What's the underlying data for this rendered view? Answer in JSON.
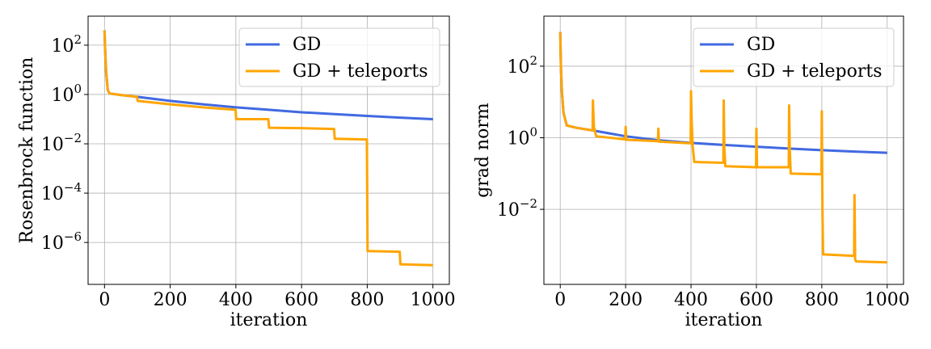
{
  "chart_data": [
    {
      "type": "line",
      "xlabel": "iteration",
      "ylabel": "Rosenbrock function",
      "yscale": "log",
      "xlim": [
        -50,
        1050
      ],
      "ylim": [
        2e-08,
        1500
      ],
      "x_ticks": [
        0,
        200,
        400,
        600,
        800,
        1000
      ],
      "x_tick_labels": [
        "0",
        "200",
        "400",
        "600",
        "800",
        "1000"
      ],
      "y_ticks": [
        100,
        1,
        0.01,
        0.0001,
        1e-06
      ],
      "y_tick_labels": [
        {
          "base": "10",
          "exp": "2"
        },
        {
          "base": "10",
          "exp": "0"
        },
        {
          "base": "10",
          "exp": "−2"
        },
        {
          "base": "10",
          "exp": "−4"
        },
        {
          "base": "10",
          "exp": "−6"
        }
      ],
      "grid": true,
      "legend_position": "top-right",
      "series": [
        {
          "name": "GD",
          "color": "#4169e1",
          "points": [
            [
              0,
              400
            ],
            [
              2,
              60
            ],
            [
              5,
              8
            ],
            [
              10,
              1.5
            ],
            [
              15,
              1.1
            ],
            [
              50,
              0.95
            ],
            [
              100,
              0.8
            ],
            [
              200,
              0.55
            ],
            [
              300,
              0.4
            ],
            [
              400,
              0.3
            ],
            [
              500,
              0.24
            ],
            [
              600,
              0.19
            ],
            [
              700,
              0.16
            ],
            [
              800,
              0.135
            ],
            [
              900,
              0.115
            ],
            [
              1000,
              0.1
            ]
          ]
        },
        {
          "name": "GD + teleports",
          "color": "#ffa500",
          "points": [
            [
              0,
              400
            ],
            [
              2,
              60
            ],
            [
              5,
              8
            ],
            [
              10,
              1.5
            ],
            [
              15,
              1.1
            ],
            [
              50,
              0.95
            ],
            [
              99,
              0.8
            ],
            [
              101,
              0.55
            ],
            [
              200,
              0.4
            ],
            [
              300,
              0.3
            ],
            [
              399,
              0.24
            ],
            [
              401,
              0.1
            ],
            [
              499,
              0.1
            ],
            [
              501,
              0.045
            ],
            [
              600,
              0.043
            ],
            [
              699,
              0.04
            ],
            [
              701,
              0.016
            ],
            [
              799,
              0.015
            ],
            [
              801,
              4.5e-07
            ],
            [
              899,
              4.2e-07
            ],
            [
              901,
              1.3e-07
            ],
            [
              1000,
              1.2e-07
            ]
          ]
        }
      ]
    },
    {
      "type": "line",
      "xlabel": "iteration",
      "ylabel": "grad norm",
      "yscale": "log",
      "xlim": [
        -50,
        1050
      ],
      "ylim": [
        8e-05,
        2500
      ],
      "x_ticks": [
        0,
        200,
        400,
        600,
        800,
        1000
      ],
      "x_tick_labels": [
        "0",
        "200",
        "400",
        "600",
        "800",
        "1000"
      ],
      "y_ticks": [
        100,
        1,
        0.01
      ],
      "y_tick_labels": [
        {
          "base": "10",
          "exp": "2"
        },
        {
          "base": "10",
          "exp": "0"
        },
        {
          "base": "10",
          "exp": "−2"
        }
      ],
      "grid": true,
      "legend_position": "top-right",
      "series": [
        {
          "name": "GD",
          "color": "#4169e1",
          "points": [
            [
              0,
              900
            ],
            [
              2,
              100
            ],
            [
              5,
              20
            ],
            [
              10,
              5
            ],
            [
              20,
              2.2
            ],
            [
              50,
              1.9
            ],
            [
              100,
              1.6
            ],
            [
              200,
              1.1
            ],
            [
              300,
              0.85
            ],
            [
              400,
              0.72
            ],
            [
              500,
              0.63
            ],
            [
              600,
              0.56
            ],
            [
              700,
              0.5
            ],
            [
              800,
              0.45
            ],
            [
              900,
              0.41
            ],
            [
              1000,
              0.38
            ]
          ]
        },
        {
          "name": "GD + teleports",
          "color": "#ffa500",
          "points": [
            [
              0,
              900
            ],
            [
              2,
              100
            ],
            [
              5,
              20
            ],
            [
              10,
              5
            ],
            [
              20,
              2.2
            ],
            [
              50,
              1.9
            ],
            [
              99,
              1.6
            ],
            [
              100,
              11
            ],
            [
              101,
              6
            ],
            [
              103,
              2
            ],
            [
              110,
              1.1
            ],
            [
              199,
              0.9
            ],
            [
              200,
              2
            ],
            [
              202,
              0.88
            ],
            [
              299,
              0.8
            ],
            [
              300,
              1.8
            ],
            [
              302,
              0.78
            ],
            [
              399,
              0.7
            ],
            [
              400,
              20
            ],
            [
              402,
              3
            ],
            [
              405,
              0.6
            ],
            [
              410,
              0.21
            ],
            [
              499,
              0.2
            ],
            [
              500,
              11
            ],
            [
              502,
              0.5
            ],
            [
              505,
              0.16
            ],
            [
              599,
              0.15
            ],
            [
              600,
              1.8
            ],
            [
              602,
              0.15
            ],
            [
              699,
              0.15
            ],
            [
              700,
              8
            ],
            [
              702,
              0.5
            ],
            [
              705,
              0.1
            ],
            [
              799,
              0.095
            ],
            [
              800,
              5.5
            ],
            [
              802,
              0.01
            ],
            [
              804,
              0.00055
            ],
            [
              899,
              0.0005
            ],
            [
              900,
              0.025
            ],
            [
              902,
              0.0004
            ],
            [
              905,
              0.00035
            ],
            [
              1000,
              0.00033
            ]
          ]
        }
      ]
    }
  ]
}
